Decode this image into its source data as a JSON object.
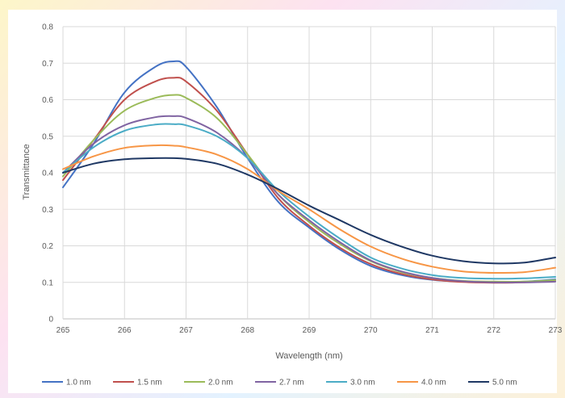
{
  "chart_data": {
    "type": "line",
    "title": "",
    "xlabel": "Wavelength (nm)",
    "ylabel": "Transmittance",
    "xlim": [
      265,
      273
    ],
    "ylim": [
      0,
      0.8
    ],
    "x_ticks": [
      "265",
      "266",
      "267",
      "268",
      "269",
      "270",
      "271",
      "272",
      "273"
    ],
    "y_ticks": [
      "0",
      "0.1",
      "0.2",
      "0.3",
      "0.4",
      "0.5",
      "0.6",
      "0.7",
      "0.8"
    ],
    "grid": true,
    "legend_position": "bottom",
    "x": [
      265,
      265.5,
      266,
      266.5,
      266.8,
      267,
      267.5,
      268,
      268.5,
      269,
      269.5,
      270,
      270.5,
      271,
      271.5,
      272,
      272.5,
      273
    ],
    "series": [
      {
        "name": "1.0 nm",
        "color": "#4472C4",
        "values": [
          0.36,
          0.48,
          0.62,
          0.69,
          0.705,
          0.69,
          0.58,
          0.44,
          0.32,
          0.25,
          0.19,
          0.145,
          0.12,
          0.107,
          0.102,
          0.1,
          0.102,
          0.108
        ]
      },
      {
        "name": "1.5 nm",
        "color": "#C0504D",
        "values": [
          0.38,
          0.49,
          0.6,
          0.65,
          0.66,
          0.65,
          0.57,
          0.45,
          0.33,
          0.255,
          0.195,
          0.15,
          0.123,
          0.108,
          0.101,
          0.099,
          0.1,
          0.103
        ]
      },
      {
        "name": "2.0 nm",
        "color": "#9BBB59",
        "values": [
          0.39,
          0.49,
          0.57,
          0.605,
          0.613,
          0.605,
          0.55,
          0.45,
          0.34,
          0.265,
          0.205,
          0.158,
          0.128,
          0.112,
          0.104,
          0.102,
          0.102,
          0.106
        ]
      },
      {
        "name": "2.7 nm",
        "color": "#8064A2",
        "values": [
          0.4,
          0.48,
          0.53,
          0.552,
          0.555,
          0.55,
          0.51,
          0.44,
          0.34,
          0.27,
          0.21,
          0.16,
          0.13,
          0.112,
          0.103,
          0.1,
          0.1,
          0.102
        ]
      },
      {
        "name": "3.0 nm",
        "color": "#4BACC6",
        "values": [
          0.4,
          0.47,
          0.515,
          0.532,
          0.533,
          0.53,
          0.5,
          0.44,
          0.35,
          0.28,
          0.22,
          0.168,
          0.138,
          0.12,
          0.112,
          0.11,
          0.111,
          0.115
        ]
      },
      {
        "name": "4.0 nm",
        "color": "#F79646",
        "values": [
          0.41,
          0.445,
          0.468,
          0.475,
          0.474,
          0.47,
          0.45,
          0.41,
          0.35,
          0.3,
          0.245,
          0.198,
          0.165,
          0.143,
          0.13,
          0.126,
          0.128,
          0.14
        ]
      },
      {
        "name": "5.0 nm",
        "color": "#1F3864",
        "values": [
          0.4,
          0.425,
          0.437,
          0.44,
          0.44,
          0.438,
          0.425,
          0.395,
          0.355,
          0.31,
          0.27,
          0.23,
          0.198,
          0.173,
          0.158,
          0.152,
          0.154,
          0.168
        ]
      }
    ]
  }
}
